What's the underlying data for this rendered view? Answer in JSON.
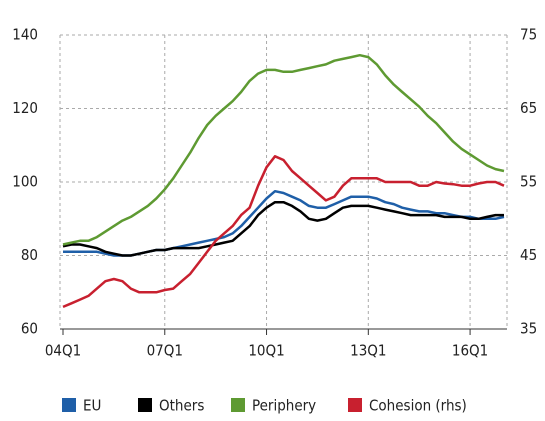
{
  "chart_data": {
    "type": "line",
    "categories": [
      "04Q1",
      null,
      null,
      null,
      null,
      null,
      null,
      null,
      null,
      null,
      null,
      null,
      "07Q1",
      null,
      null,
      null,
      null,
      null,
      null,
      null,
      null,
      null,
      null,
      null,
      "10Q1",
      null,
      null,
      null,
      null,
      null,
      null,
      null,
      null,
      null,
      null,
      null,
      "13Q1",
      null,
      null,
      null,
      null,
      null,
      null,
      null,
      null,
      null,
      null,
      null,
      "16Q1",
      null,
      null,
      null,
      null
    ],
    "ylim": [
      60,
      140
    ],
    "yticks": [
      60,
      80,
      100,
      120,
      140
    ],
    "y2lim": [
      35,
      75
    ],
    "y2ticks": [
      35,
      45,
      55,
      65,
      75
    ],
    "grid": true,
    "legend": "bottom",
    "series": [
      {
        "name": "EU",
        "color": "#1f5fa8",
        "values": [
          81,
          81,
          81,
          81,
          81,
          80.5,
          80,
          80,
          80,
          80.5,
          81,
          81.5,
          81.5,
          82,
          82.5,
          83,
          83.5,
          84,
          84.5,
          85,
          86,
          88,
          90.5,
          93,
          95.5,
          97.5,
          97,
          96,
          95,
          93.5,
          93,
          93,
          94,
          95,
          96,
          96,
          96,
          95.5,
          94.5,
          94,
          93,
          92.5,
          92,
          92,
          91.5,
          91.5,
          91,
          90.5,
          90.5,
          90,
          90,
          90,
          90.5
        ]
      },
      {
        "name": "Others",
        "color": "#000000",
        "values": [
          82.5,
          83,
          83,
          82.5,
          82,
          81,
          80.5,
          80,
          80,
          80.5,
          81,
          81.5,
          81.5,
          82,
          82,
          82,
          82,
          82.5,
          83,
          83.5,
          84,
          86,
          88,
          91,
          93,
          94.5,
          94.5,
          93.5,
          92,
          90,
          89.5,
          90,
          91.5,
          93,
          93.5,
          93.5,
          93.5,
          93,
          92.5,
          92,
          91.5,
          91,
          91,
          91,
          91,
          90.5,
          90.5,
          90.5,
          90,
          90,
          90.5,
          91,
          91
        ]
      },
      {
        "name": "Periphery",
        "color": "#5e9a32",
        "values": [
          83,
          83.5,
          84,
          84,
          85,
          86.5,
          88,
          89.5,
          90.5,
          92,
          93.5,
          95.5,
          98,
          101,
          104.5,
          108,
          112,
          115.5,
          118,
          120,
          122,
          124.5,
          127.5,
          129.5,
          130.5,
          130.5,
          130,
          130,
          130.5,
          131,
          131.5,
          132,
          133,
          133.5,
          134,
          134.5,
          134,
          132,
          129,
          126.5,
          124.5,
          122.5,
          120.5,
          118,
          116,
          113.5,
          111,
          109,
          107.5,
          106,
          104.5,
          103.5,
          103
        ]
      },
      {
        "name": "Cohesion (rhs)",
        "color": "#c8202f",
        "axis": "y2",
        "values": [
          38,
          38.5,
          39,
          39.5,
          40.5,
          41.5,
          41.8,
          41.5,
          40.5,
          40,
          40,
          40,
          40.3,
          40.5,
          41.5,
          42.5,
          44,
          45.5,
          47,
          48,
          49,
          50.5,
          51.5,
          54.5,
          57,
          58.5,
          58,
          56.5,
          55.5,
          54.5,
          53.5,
          52.5,
          53,
          54.5,
          55.5,
          55.5,
          55.5,
          55.5,
          55,
          55,
          55,
          55,
          54.5,
          54.5,
          55,
          54.8,
          54.7,
          54.5,
          54.5,
          54.8,
          55,
          55,
          54.5
        ]
      }
    ]
  }
}
